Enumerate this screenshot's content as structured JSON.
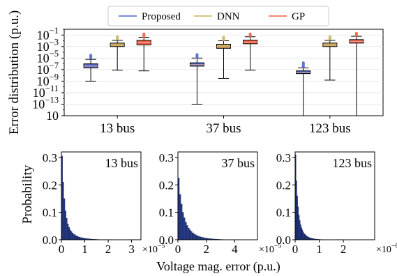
{
  "chart_data": [
    {
      "type": "box",
      "ylabel": "Error distribution (p.u.)",
      "yscale": "log",
      "ylim": [
        1e-15,
        1
      ],
      "categories": [
        "13 bus",
        "37 bus",
        "123 bus"
      ],
      "ytick_labels": [
        {
          "base": "10",
          "exp": "−1"
        },
        {
          "base": "10",
          "exp": "−3"
        },
        {
          "base": "10",
          "exp": "−5"
        },
        {
          "base": "10",
          "exp": "−7"
        },
        {
          "base": "10",
          "exp": "−9"
        },
        {
          "base": "10",
          "exp": "−11"
        },
        {
          "base": "10",
          "exp": "−13"
        },
        {
          "base": "10",
          "exp": ""
        }
      ],
      "legend": {
        "placement": "top-center, outside"
      },
      "series": [
        {
          "name": "Proposed",
          "color": "#4a66c9",
          "median_color": "#e0a0a0",
          "boxes": [
            {
              "whislo": 1e-09,
              "q1": 2e-07,
              "med": 4e-07,
              "q3": 1e-06,
              "whishi": 6e-06,
              "fliers_lo": 1e-05,
              "fliers_hi": 3e-05
            },
            {
              "whislo": 1e-13,
              "q1": 4e-07,
              "med": 7e-07,
              "q3": 1.5e-06,
              "whislo_label": "",
              "whishi": 1e-05,
              "fliers_lo": 1.4e-05,
              "fliers_hi": 4e-05
            },
            {
              "whislo": 1e-15,
              "q1": 2e-08,
              "med": 3e-08,
              "q3": 6e-08,
              "whishi": 2e-07,
              "fliers_lo": 3e-07,
              "fliers_hi": 1.5e-06
            }
          ]
        },
        {
          "name": "DNN",
          "color": "#c8b55a",
          "median_color": "#e09090",
          "boxes": [
            {
              "whislo": 8e-08,
              "q1": 0.001,
              "med": 0.002,
              "q3": 0.004,
              "whishi": 0.012,
              "fliers_lo": 0.02,
              "fliers_hi": 0.05
            },
            {
              "whislo": 3e-09,
              "q1": 0.0005,
              "med": 0.001,
              "q3": 0.0025,
              "whishi": 0.01,
              "fliers_lo": 0.015,
              "fliers_hi": 0.04
            },
            {
              "whislo": 1.5e-09,
              "q1": 0.001,
              "med": 0.002,
              "q3": 0.004,
              "whishi": 0.012,
              "fliers_lo": 0.02,
              "fliers_hi": 0.05
            }
          ]
        },
        {
          "name": "GP",
          "color": "#f06040",
          "median_color": "#f0a0a0",
          "boxes": [
            {
              "whislo": 6e-08,
              "q1": 0.002,
              "med": 0.005,
              "q3": 0.012,
              "whishi": 0.04,
              "fliers_lo": 0.06,
              "fliers_hi": 0.15
            },
            {
              "whislo": 8e-08,
              "q1": 0.003,
              "med": 0.006,
              "q3": 0.013,
              "whishi": 0.05,
              "fliers_lo": 0.07,
              "fliers_hi": 0.15
            },
            {
              "whislo": 1e-15,
              "q1": 0.004,
              "med": 0.008,
              "q3": 0.016,
              "whishi": 0.06,
              "fliers_lo": 0.09,
              "fliers_hi": 0.2
            }
          ]
        }
      ]
    },
    {
      "type": "histogram",
      "shared_ylabel": "Probability",
      "shared_xlabel": "Voltage mag. error (p.u.)",
      "panels": [
        {
          "title": "13 bus",
          "x_max": 3.4,
          "xticks": [
            0,
            1,
            2,
            3
          ],
          "tick_labels": [
            "0",
            "1",
            "2",
            "3"
          ],
          "x_offset_label": {
            "base": "×10",
            "exp": "−5"
          },
          "yticks": [
            0.0,
            0.1,
            0.2,
            0.3
          ],
          "ytick_labels": [
            "0.0",
            "0.1",
            "0.2",
            "0.3"
          ],
          "ylim": [
            0,
            0.32
          ],
          "bin_width": 0.05,
          "values": [
            0.305,
            0.21,
            0.15,
            0.105,
            0.078,
            0.058,
            0.045,
            0.036,
            0.03,
            0.025,
            0.021,
            0.018,
            0.015,
            0.013,
            0.011,
            0.0095,
            0.0083,
            0.0072,
            0.0063,
            0.0055,
            0.0048,
            0.0042,
            0.0037,
            0.0032,
            0.0028,
            0.0024,
            0.0021,
            0.0018,
            0.0016,
            0.0014,
            0.0012,
            0.001,
            0.0009,
            0.0008,
            0.0007,
            0.0006,
            0.0005,
            0.0004,
            0.0003,
            0.0003,
            0.0002,
            0.0002
          ]
        },
        {
          "title": "37 bus",
          "x_max": 5.6,
          "xticks": [
            0,
            2,
            4
          ],
          "tick_labels": [
            "0",
            "2",
            "4"
          ],
          "x_offset_label": {
            "base": "×10",
            "exp": "−5"
          },
          "yticks": [
            0.0,
            0.1,
            0.2,
            0.3
          ],
          "ytick_labels": [
            "0.0",
            "0.1",
            "0.2",
            "0.3"
          ],
          "ylim": [
            0,
            0.32
          ],
          "bin_width": 0.1,
          "values": [
            0.225,
            0.165,
            0.13,
            0.1,
            0.08,
            0.064,
            0.052,
            0.043,
            0.036,
            0.03,
            0.025,
            0.021,
            0.018,
            0.015,
            0.013,
            0.011,
            0.0095,
            0.0083,
            0.0072,
            0.0062,
            0.0054,
            0.0047,
            0.004,
            0.0035,
            0.003,
            0.0026,
            0.0022,
            0.0019,
            0.0016,
            0.0013,
            0.0011,
            0.0009,
            0.0008,
            0.0006,
            0.0005,
            0.0004,
            0.0003,
            0.0002
          ]
        },
        {
          "title": "123 bus",
          "x_max": 3.3,
          "xticks": [
            0,
            1,
            2
          ],
          "tick_labels": [
            "0",
            "1",
            "2"
          ],
          "x_offset_label": {
            "base": "×10",
            "exp": "−6"
          },
          "yticks": [
            0.0,
            0.1,
            0.2,
            0.3
          ],
          "ytick_labels": [
            "0.0",
            "0.1",
            "0.2",
            "0.3"
          ],
          "ylim": [
            0,
            0.32
          ],
          "bin_width": 0.035,
          "values": [
            0.31,
            0.215,
            0.16,
            0.12,
            0.09,
            0.07,
            0.055,
            0.044,
            0.036,
            0.029,
            0.024,
            0.02,
            0.017,
            0.014,
            0.012,
            0.01,
            0.0086,
            0.0074,
            0.0063,
            0.0054,
            0.0046,
            0.004,
            0.0034,
            0.0029,
            0.0025,
            0.0021,
            0.0018,
            0.0015,
            0.0013,
            0.0011,
            0.0009,
            0.0008,
            0.0007,
            0.0006,
            0.0005,
            0.0004,
            0.0003,
            0.0003,
            0.0002
          ]
        }
      ]
    }
  ],
  "hist_bar_color": "#2a3f8f",
  "hist_bar_edge": "#0b1540"
}
